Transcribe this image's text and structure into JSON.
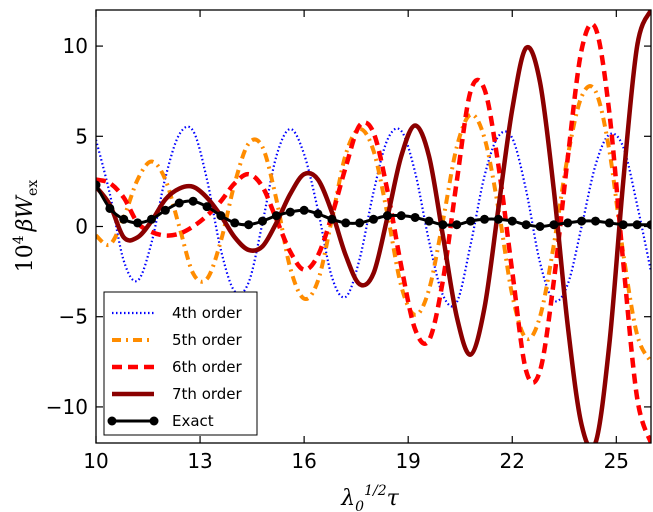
{
  "chart_data": {
    "type": "line",
    "xlabel": "λ0^{1/2}τ",
    "xlabel_base": "λ",
    "xlabel_sub": "0",
    "xlabel_sup": "1/2",
    "xlabel_tail": "τ",
    "ylabel": "10^4 βW_ex",
    "ylabel_base": "10",
    "ylabel_sup": "4",
    "ylabel_mid": "βW",
    "ylabel_sub": "ex",
    "xlim": [
      10,
      26
    ],
    "ylim": [
      -12,
      12
    ],
    "x_ticks": [
      10,
      13,
      16,
      19,
      22,
      25
    ],
    "x_tick_labels": [
      "10",
      "13",
      "16",
      "19",
      "22",
      "25"
    ],
    "y_ticks": [
      10,
      5,
      0,
      -5,
      -10
    ],
    "y_tick_labels": [
      "10",
      "5",
      "0",
      "−5",
      "−10"
    ],
    "grid": false,
    "legend_position": "lower-left",
    "series": [
      {
        "name": "4th order",
        "color": "#0000ff",
        "style": "dotted",
        "x": [
          10.0,
          10.4,
          10.8,
          11.2,
          11.6,
          12.0,
          12.4,
          12.8,
          13.2,
          13.6,
          14.0,
          14.4,
          14.8,
          15.2,
          15.6,
          16.0,
          16.4,
          16.8,
          17.2,
          17.6,
          18.0,
          18.4,
          18.8,
          19.2,
          19.6,
          20.0,
          20.4,
          20.8,
          21.2,
          21.6,
          22.0,
          22.4,
          22.8,
          23.2,
          23.6,
          24.0,
          24.4,
          24.8,
          25.2,
          25.6,
          26.0
        ],
        "y": [
          4.8,
          1.8,
          -1.9,
          -3.0,
          -0.9,
          2.7,
          5.1,
          5.3,
          2.6,
          -1.3,
          -3.6,
          -3.1,
          0.2,
          3.9,
          5.4,
          4.0,
          0.9,
          -2.8,
          -3.9,
          -1.8,
          1.9,
          4.8,
          5.3,
          3.0,
          -0.8,
          -3.8,
          -4.2,
          -1.0,
          2.8,
          5.0,
          4.9,
          2.0,
          -2.0,
          -4.1,
          -3.2,
          0.0,
          3.4,
          5.1,
          4.4,
          1.2,
          -2.5
        ]
      },
      {
        "name": "5th order",
        "color": "#ff8c00",
        "style": "dashdot",
        "x": [
          10.0,
          10.4,
          10.8,
          11.2,
          11.6,
          12.0,
          12.4,
          12.8,
          13.2,
          13.6,
          14.0,
          14.4,
          14.8,
          15.2,
          15.6,
          16.0,
          16.4,
          16.8,
          17.2,
          17.6,
          18.0,
          18.4,
          18.8,
          19.2,
          19.6,
          20.0,
          20.4,
          20.8,
          21.2,
          21.6,
          22.0,
          22.4,
          22.8,
          23.2,
          23.6,
          24.0,
          24.4,
          24.8,
          25.2,
          25.6,
          26.0
        ],
        "y": [
          -0.5,
          -1.0,
          0.5,
          2.6,
          3.6,
          2.6,
          0.0,
          -2.6,
          -2.9,
          -0.8,
          2.4,
          4.6,
          4.4,
          1.5,
          -2.3,
          -4.0,
          -3.0,
          0.4,
          4.0,
          5.4,
          4.2,
          0.7,
          -3.3,
          -4.9,
          -3.5,
          0.3,
          4.4,
          6.2,
          4.9,
          1.0,
          -3.8,
          -6.2,
          -5.0,
          -1.0,
          3.9,
          7.2,
          7.5,
          4.2,
          -1.5,
          -6.0,
          -7.5
        ]
      },
      {
        "name": "6th order",
        "color": "#ff0000",
        "style": "dashed",
        "x": [
          10.0,
          10.4,
          10.8,
          11.2,
          11.6,
          12.0,
          12.4,
          12.8,
          13.2,
          13.6,
          14.0,
          14.4,
          14.8,
          15.2,
          15.6,
          16.0,
          16.4,
          16.8,
          17.2,
          17.6,
          18.0,
          18.4,
          18.8,
          19.2,
          19.6,
          20.0,
          20.4,
          20.8,
          21.2,
          21.6,
          22.0,
          22.4,
          22.8,
          23.2,
          23.6,
          24.0,
          24.4,
          24.8,
          25.2,
          25.6,
          26.0
        ],
        "y": [
          2.6,
          2.4,
          1.6,
          0.2,
          -0.3,
          -0.5,
          -0.4,
          0.0,
          0.6,
          1.4,
          2.4,
          2.9,
          2.2,
          0.4,
          -1.4,
          -2.4,
          -1.6,
          0.6,
          3.3,
          5.6,
          5.2,
          2.0,
          -2.2,
          -5.7,
          -6.3,
          -3.0,
          2.5,
          7.5,
          7.6,
          3.4,
          -2.5,
          -8.0,
          -8.0,
          -3.0,
          3.8,
          9.8,
          11.0,
          6.3,
          -2.0,
          -9.5,
          -12.0
        ]
      },
      {
        "name": "7th order",
        "color": "#8b0000",
        "style": "solid",
        "x": [
          10.0,
          10.4,
          10.8,
          11.2,
          11.6,
          12.0,
          12.4,
          12.8,
          13.2,
          13.6,
          14.0,
          14.4,
          14.8,
          15.2,
          15.6,
          16.0,
          16.4,
          16.8,
          17.2,
          17.6,
          18.0,
          18.4,
          18.8,
          19.2,
          19.6,
          20.0,
          20.4,
          20.8,
          21.2,
          21.6,
          22.0,
          22.4,
          22.8,
          23.2,
          23.6,
          24.0,
          24.4,
          24.8,
          25.2,
          25.6,
          26.0
        ],
        "y": [
          2.2,
          1.2,
          -0.6,
          -0.6,
          0.3,
          1.5,
          2.1,
          2.2,
          1.6,
          0.6,
          -0.6,
          -1.3,
          -1.1,
          0.2,
          1.8,
          2.9,
          2.6,
          0.8,
          -1.6,
          -3.2,
          -2.6,
          0.5,
          3.9,
          5.6,
          3.9,
          -0.5,
          -5.0,
          -7.1,
          -4.5,
          1.0,
          6.5,
          9.9,
          8.0,
          2.0,
          -5.5,
          -11.0,
          -12.0,
          -6.5,
          2.5,
          10.0,
          12.0
        ]
      },
      {
        "name": "Exact",
        "color": "#000000",
        "style": "solid-markers",
        "x": [
          10.0,
          10.4,
          10.8,
          11.2,
          11.6,
          12.0,
          12.4,
          12.8,
          13.2,
          13.6,
          14.0,
          14.4,
          14.8,
          15.2,
          15.6,
          16.0,
          16.4,
          16.8,
          17.2,
          17.6,
          18.0,
          18.4,
          18.8,
          19.2,
          19.6,
          20.0,
          20.4,
          20.8,
          21.2,
          21.6,
          22.0,
          22.4,
          22.8,
          23.2,
          23.6,
          24.0,
          24.4,
          24.8,
          25.2,
          25.6,
          26.0
        ],
        "y": [
          2.3,
          1.0,
          0.4,
          0.2,
          0.4,
          0.9,
          1.3,
          1.4,
          1.1,
          0.6,
          0.2,
          0.1,
          0.3,
          0.6,
          0.8,
          0.9,
          0.7,
          0.4,
          0.2,
          0.2,
          0.4,
          0.6,
          0.6,
          0.5,
          0.3,
          0.1,
          0.1,
          0.3,
          0.4,
          0.4,
          0.3,
          0.1,
          0.0,
          0.1,
          0.2,
          0.3,
          0.3,
          0.2,
          0.1,
          0.1,
          0.1
        ]
      }
    ]
  }
}
